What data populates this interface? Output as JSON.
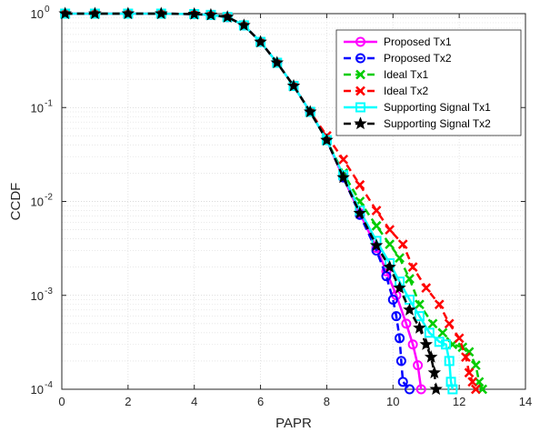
{
  "chart_data": {
    "type": "line",
    "title": "",
    "xlabel": "PAPR",
    "ylabel": "CCDF",
    "xlim": [
      0,
      14
    ],
    "ylim": [
      0.0001,
      1
    ],
    "yscale": "log",
    "grid": true,
    "legend_position": "top-right",
    "x_ticks": [
      0,
      2,
      4,
      6,
      8,
      10,
      12,
      14
    ],
    "x_tick_labels": [
      "0",
      "2",
      "4",
      "6",
      "8",
      "10",
      "12",
      "14"
    ],
    "y_ticks": [
      0.0001,
      0.001,
      0.01,
      0.1,
      1
    ],
    "y_tick_labels": [
      {
        "base": "10",
        "exp": "-4"
      },
      {
        "base": "10",
        "exp": "-3"
      },
      {
        "base": "10",
        "exp": "-2"
      },
      {
        "base": "10",
        "exp": "-1"
      },
      {
        "base": "10",
        "exp": "0"
      }
    ],
    "series": [
      {
        "name": "Proposed Tx1",
        "color": "#ff00ff",
        "dash": "solid",
        "marker": "circle",
        "points": [
          [
            0.1,
            1
          ],
          [
            1,
            1
          ],
          [
            2,
            1
          ],
          [
            3,
            1
          ],
          [
            4,
            0.99
          ],
          [
            4.5,
            0.97
          ],
          [
            5,
            0.92
          ],
          [
            5.5,
            0.75
          ],
          [
            6,
            0.5
          ],
          [
            6.5,
            0.3
          ],
          [
            7,
            0.17
          ],
          [
            7.5,
            0.09
          ],
          [
            8,
            0.045
          ],
          [
            8.5,
            0.018
          ],
          [
            9,
            0.0075
          ],
          [
            9.5,
            0.0032
          ],
          [
            9.8,
            0.0018
          ],
          [
            10.1,
            0.001
          ],
          [
            10.4,
            0.0005
          ],
          [
            10.6,
            0.0003
          ],
          [
            10.75,
            0.00018
          ],
          [
            10.85,
            0.0001
          ]
        ]
      },
      {
        "name": "Proposed Tx2",
        "color": "#0000ff",
        "dash": "dashed",
        "marker": "circle",
        "points": [
          [
            0.1,
            1
          ],
          [
            1,
            1
          ],
          [
            2,
            1
          ],
          [
            3,
            1
          ],
          [
            4,
            0.99
          ],
          [
            4.5,
            0.97
          ],
          [
            5,
            0.92
          ],
          [
            5.5,
            0.75
          ],
          [
            6,
            0.5
          ],
          [
            6.5,
            0.3
          ],
          [
            7,
            0.17
          ],
          [
            7.5,
            0.09
          ],
          [
            8,
            0.045
          ],
          [
            8.5,
            0.018
          ],
          [
            9,
            0.0072
          ],
          [
            9.5,
            0.003
          ],
          [
            9.8,
            0.0016
          ],
          [
            10,
            0.0009
          ],
          [
            10.1,
            0.0006
          ],
          [
            10.2,
            0.00035
          ],
          [
            10.25,
            0.0002
          ],
          [
            10.3,
            0.00012
          ],
          [
            10.5,
            0.0001
          ]
        ]
      },
      {
        "name": "Ideal Tx1",
        "color": "#00cc00",
        "dash": "dashed",
        "marker": "x",
        "points": [
          [
            0.1,
            1
          ],
          [
            1,
            1
          ],
          [
            2,
            1
          ],
          [
            3,
            1
          ],
          [
            4,
            0.99
          ],
          [
            4.5,
            0.97
          ],
          [
            5,
            0.92
          ],
          [
            5.5,
            0.75
          ],
          [
            6,
            0.5
          ],
          [
            6.5,
            0.3
          ],
          [
            7,
            0.17
          ],
          [
            7.5,
            0.09
          ],
          [
            8,
            0.045
          ],
          [
            8.5,
            0.02
          ],
          [
            9,
            0.01
          ],
          [
            9.5,
            0.0055
          ],
          [
            9.9,
            0.0035
          ],
          [
            10.2,
            0.0025
          ],
          [
            10.5,
            0.0015
          ],
          [
            10.8,
            0.0008
          ],
          [
            11.2,
            0.0005
          ],
          [
            11.5,
            0.0004
          ],
          [
            11.8,
            0.0003
          ],
          [
            12.1,
            0.00028
          ],
          [
            12.3,
            0.00025
          ],
          [
            12.5,
            0.00018
          ],
          [
            12.6,
            0.00012
          ],
          [
            12.7,
            0.0001
          ]
        ]
      },
      {
        "name": "Ideal Tx2",
        "color": "#ff0000",
        "dash": "dashed",
        "marker": "x",
        "points": [
          [
            0.1,
            1
          ],
          [
            1,
            1
          ],
          [
            2,
            1
          ],
          [
            3,
            1
          ],
          [
            4,
            0.99
          ],
          [
            4.5,
            0.97
          ],
          [
            5,
            0.92
          ],
          [
            5.5,
            0.75
          ],
          [
            6,
            0.5
          ],
          [
            6.5,
            0.3
          ],
          [
            7,
            0.17
          ],
          [
            7.5,
            0.09
          ],
          [
            8,
            0.05
          ],
          [
            8.5,
            0.028
          ],
          [
            9,
            0.015
          ],
          [
            9.5,
            0.008
          ],
          [
            9.9,
            0.005
          ],
          [
            10.3,
            0.0035
          ],
          [
            10.6,
            0.002
          ],
          [
            11,
            0.0012
          ],
          [
            11.4,
            0.0008
          ],
          [
            11.7,
            0.0005
          ],
          [
            12,
            0.00035
          ],
          [
            12.2,
            0.00022
          ],
          [
            12.3,
            0.00015
          ],
          [
            12.4,
            0.00012
          ],
          [
            12.5,
            0.0001
          ]
        ]
      },
      {
        "name": "Supporting Signal Tx1",
        "color": "#00ffff",
        "dash": "solid",
        "marker": "square",
        "points": [
          [
            0.1,
            1
          ],
          [
            1,
            1
          ],
          [
            2,
            1
          ],
          [
            3,
            1
          ],
          [
            4,
            0.99
          ],
          [
            4.5,
            0.97
          ],
          [
            5,
            0.92
          ],
          [
            5.5,
            0.75
          ],
          [
            6,
            0.5
          ],
          [
            6.5,
            0.3
          ],
          [
            7,
            0.17
          ],
          [
            7.5,
            0.09
          ],
          [
            8,
            0.045
          ],
          [
            8.5,
            0.019
          ],
          [
            9,
            0.008
          ],
          [
            9.5,
            0.0038
          ],
          [
            9.9,
            0.0022
          ],
          [
            10.2,
            0.0014
          ],
          [
            10.5,
            0.0009
          ],
          [
            10.8,
            0.0006
          ],
          [
            11.1,
            0.0004
          ],
          [
            11.4,
            0.00032
          ],
          [
            11.6,
            0.0003
          ],
          [
            11.7,
            0.0002
          ],
          [
            11.75,
            0.00012
          ],
          [
            11.8,
            0.0001
          ]
        ]
      },
      {
        "name": "Supporting Signal Tx2",
        "color": "#000000",
        "dash": "dashed",
        "marker": "star",
        "points": [
          [
            0.1,
            1
          ],
          [
            1,
            1
          ],
          [
            2,
            1
          ],
          [
            3,
            1
          ],
          [
            4,
            0.99
          ],
          [
            4.5,
            0.97
          ],
          [
            5,
            0.92
          ],
          [
            5.5,
            0.75
          ],
          [
            6,
            0.5
          ],
          [
            6.5,
            0.3
          ],
          [
            7,
            0.17
          ],
          [
            7.5,
            0.09
          ],
          [
            8,
            0.045
          ],
          [
            8.5,
            0.018
          ],
          [
            9,
            0.0075
          ],
          [
            9.5,
            0.0034
          ],
          [
            9.9,
            0.002
          ],
          [
            10.2,
            0.0012
          ],
          [
            10.5,
            0.0007
          ],
          [
            10.8,
            0.00045
          ],
          [
            11,
            0.0003
          ],
          [
            11.15,
            0.00022
          ],
          [
            11.25,
            0.00015
          ],
          [
            11.3,
            0.0001
          ]
        ]
      }
    ]
  }
}
